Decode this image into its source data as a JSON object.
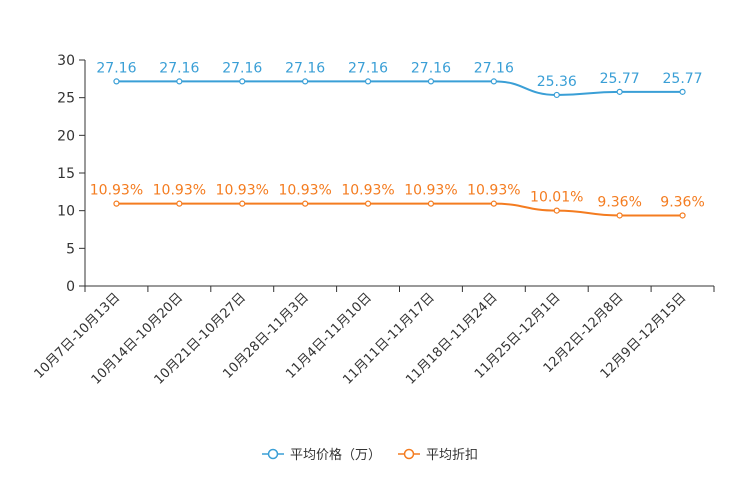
{
  "chart_data": {
    "type": "line",
    "title": "",
    "xlabel": "",
    "ylabel": "",
    "ylim": [
      0,
      30
    ],
    "yticks": [
      "0",
      "5",
      "10",
      "15",
      "20",
      "25",
      "30"
    ],
    "categories": [
      "10月7日-10月13日",
      "10月14日-10月20日",
      "10月21日-10月27日",
      "10月28日-11月3日",
      "11月4日-11月10日",
      "11月11日-11月17日",
      "11月18日-11月24日",
      "11月25日-12月1日",
      "12月2日-12月8日",
      "12月9日-12月15日"
    ],
    "series": [
      {
        "name": "平均价格（万）",
        "color": "#3a9fd6",
        "values": [
          27.16,
          27.16,
          27.16,
          27.16,
          27.16,
          27.16,
          27.16,
          25.36,
          25.77,
          25.77
        ],
        "labels": [
          "27.16",
          "27.16",
          "27.16",
          "27.16",
          "27.16",
          "27.16",
          "27.16",
          "25.36",
          "25.77",
          "25.77"
        ]
      },
      {
        "name": "平均折扣",
        "color": "#f47c20",
        "values": [
          10.93,
          10.93,
          10.93,
          10.93,
          10.93,
          10.93,
          10.93,
          10.01,
          9.36,
          9.36
        ],
        "labels": [
          "10.93%",
          "10.93%",
          "10.93%",
          "10.93%",
          "10.93%",
          "10.93%",
          "10.93%",
          "10.01%",
          "9.36%",
          "9.36%"
        ]
      }
    ],
    "legend": "bottom-center",
    "grid": false
  }
}
